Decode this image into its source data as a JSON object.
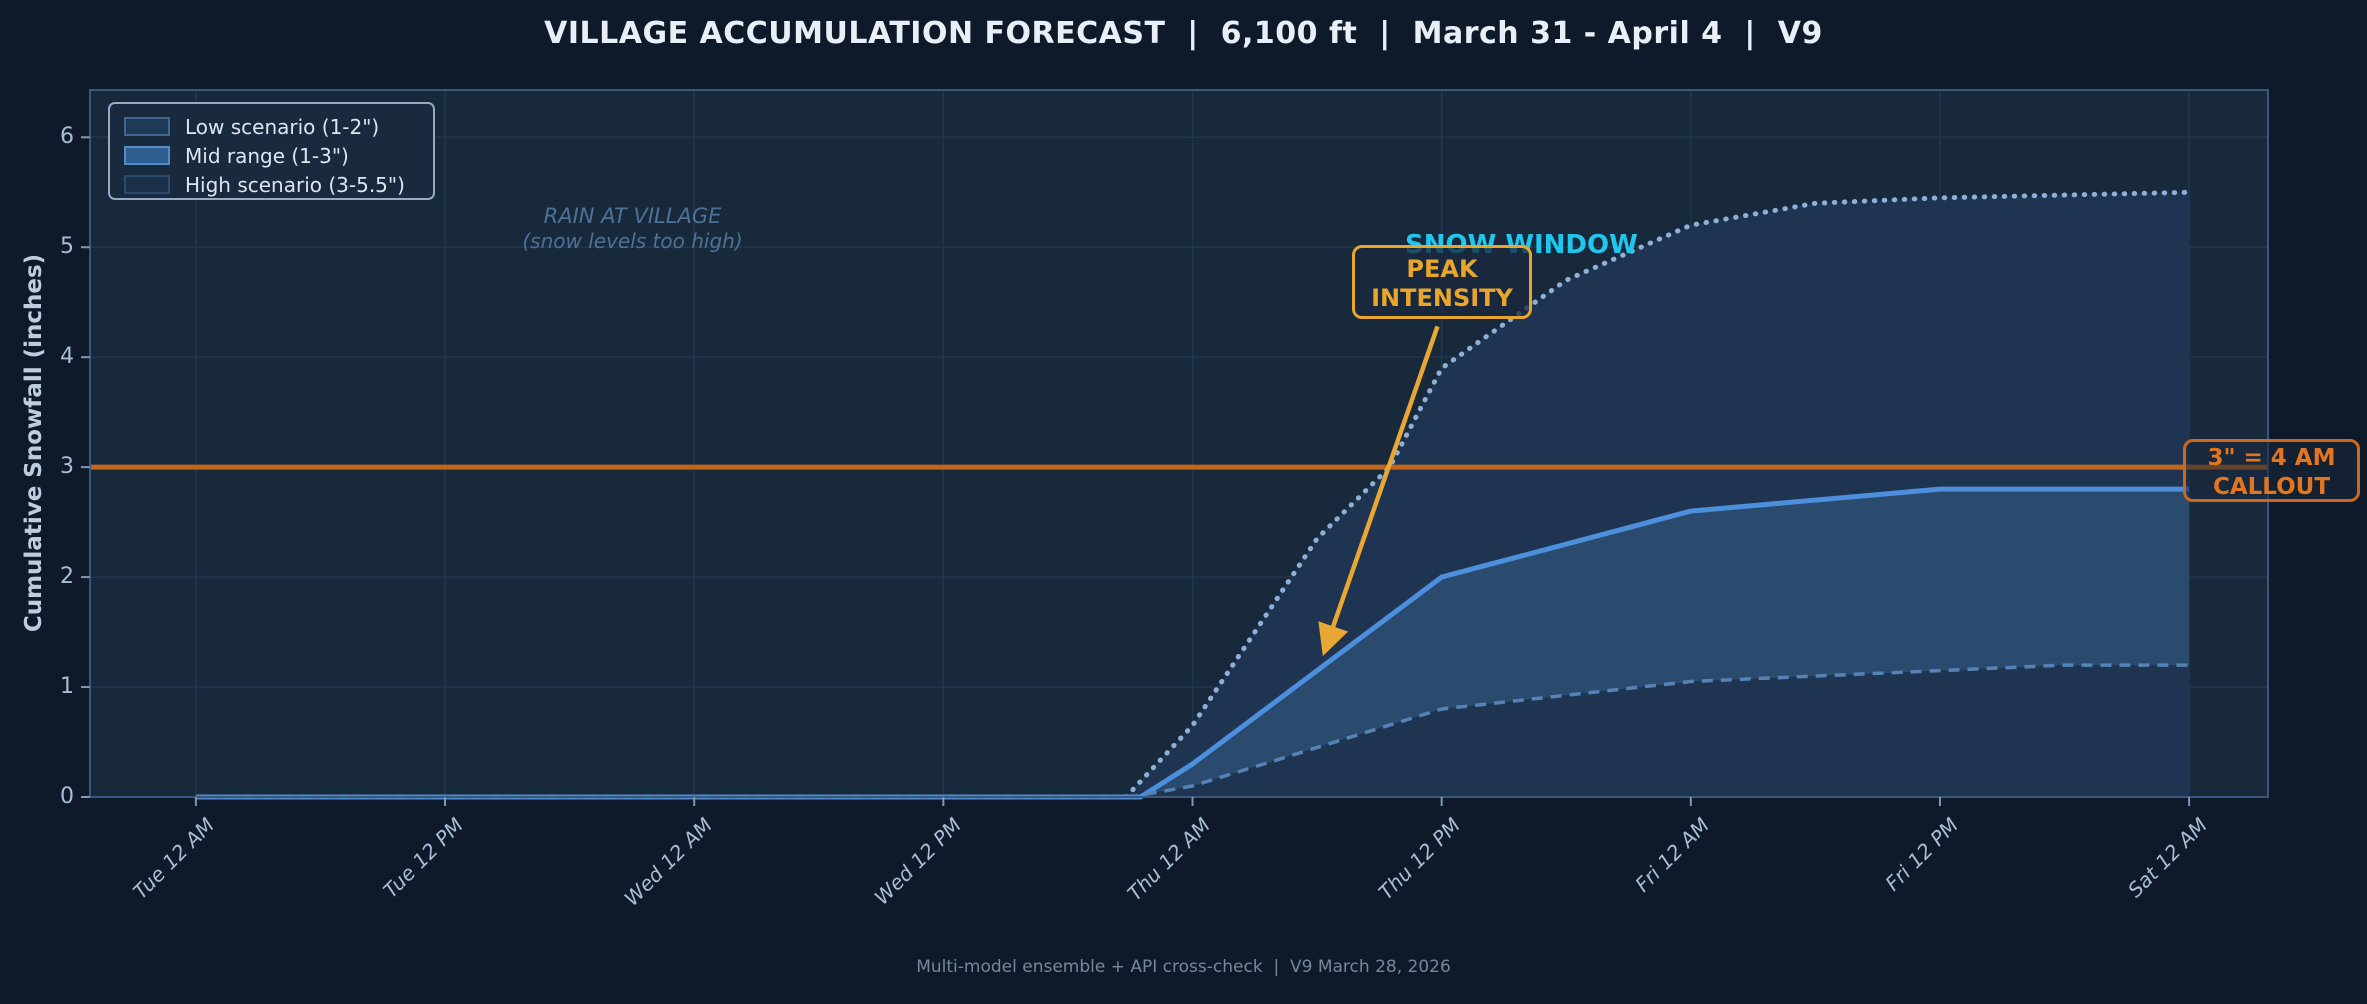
{
  "title": "VILLAGE ACCUMULATION FORECAST  |  6,100 ft  |  March 31 - April 4  |  V9",
  "footer": "Multi-model ensemble + API cross-check  |  V9 March 28, 2026",
  "y_axis": {
    "label": "Cumulative Snowfall (inches)",
    "ticks": [
      0,
      1,
      2,
      3,
      4,
      5,
      6
    ]
  },
  "x_axis": {
    "ticks": [
      {
        "t": 0,
        "label": "Tue 12 AM"
      },
      {
        "t": 12,
        "label": "Tue 12 PM"
      },
      {
        "t": 24,
        "label": "Wed 12 AM"
      },
      {
        "t": 36,
        "label": "Wed 12 PM"
      },
      {
        "t": 48,
        "label": "Thu 12 AM"
      },
      {
        "t": 60,
        "label": "Thu 12 PM"
      },
      {
        "t": 72,
        "label": "Fri 12 AM"
      },
      {
        "t": 84,
        "label": "Fri 12 PM"
      },
      {
        "t": 96,
        "label": "Sat 12 AM"
      }
    ]
  },
  "legend": {
    "items": [
      {
        "label": "Low scenario (1-2\")",
        "fill": "#1d3a58",
        "border": "#3d6690"
      },
      {
        "label": "Mid range (1-3\")",
        "fill": "#2e5f93",
        "border": "#548bc0"
      },
      {
        "label": "High scenario (3-5.5\")",
        "fill": "#1b3048",
        "border": "#2c4c6e"
      }
    ]
  },
  "annotations": {
    "rain": {
      "line1": "RAIN AT VILLAGE",
      "line2": "(snow levels too high)",
      "color": "#4e7296"
    },
    "snow_window": {
      "text": "SNOW WINDOW",
      "color": "#1fc7ed"
    },
    "peak": {
      "line1": "PEAK",
      "line2": "INTENSITY",
      "color": "#e8a62c",
      "arrow": {
        "from_t": 59.8,
        "from_v": 4.28,
        "to_t": 54.35,
        "to_v": 1.32
      }
    },
    "callout": {
      "line1": "3\" = 4 AM",
      "line2": "CALLOUT",
      "color": "#e2761f"
    }
  },
  "chart_data": {
    "type": "area",
    "title": "VILLAGE ACCUMULATION FORECAST | 6,100 ft | March 31 - April 4 | V9",
    "xlabel": "",
    "ylabel": "Cumulative Snowfall (inches)",
    "x_unit": "hours since Tue 12 AM",
    "x_range": [
      -5.1,
      99.8
    ],
    "y_range": [
      0,
      6.43
    ],
    "grid": true,
    "legend_position": "upper left",
    "threshold_line": {
      "value": 3,
      "color": "#c2661e",
      "label": "3\" = 4 AM CALLOUT"
    },
    "series": [
      {
        "name": "High scenario (3-5.5\")",
        "style": "dotted",
        "color": "#8cb0d8",
        "width": 5,
        "points": [
          [
            44.8,
            0
          ],
          [
            48,
            0.65
          ],
          [
            54,
            2.35
          ],
          [
            57.5,
            3.0
          ],
          [
            60,
            3.9
          ],
          [
            66,
            4.7
          ],
          [
            72,
            5.2
          ],
          [
            78,
            5.4
          ],
          [
            84,
            5.45
          ],
          [
            96,
            5.5
          ]
        ]
      },
      {
        "name": "Mid range (1-3\")",
        "style": "solid",
        "color": "#4c8fdc",
        "width": 5,
        "points": [
          [
            0,
            0
          ],
          [
            45.5,
            0
          ],
          [
            48,
            0.3
          ],
          [
            60,
            2.0
          ],
          [
            72,
            2.6
          ],
          [
            84,
            2.8
          ],
          [
            96,
            2.8
          ]
        ]
      },
      {
        "name": "Low scenario (1-2\")",
        "style": "dashed",
        "color": "#5483b8",
        "width": 3.5,
        "points": [
          [
            0,
            0
          ],
          [
            45,
            0
          ],
          [
            48,
            0.1
          ],
          [
            60,
            0.8
          ],
          [
            72,
            1.05
          ],
          [
            84,
            1.15
          ],
          [
            90,
            1.2
          ],
          [
            96,
            1.2
          ]
        ]
      }
    ],
    "bands": [
      {
        "upper": 0,
        "lower": null,
        "color": "#1e3450"
      },
      {
        "upper": 1,
        "lower": 2,
        "color": "#2b4b6e"
      }
    ]
  },
  "colors": {
    "figure_bg": "#0e1a29",
    "plot_bg": "#19293c",
    "grid": "#223650",
    "plot_border": "#3a587c",
    "tick": "#7f98b4",
    "threshold": "#c2661e",
    "arrow": "#e9a733"
  }
}
